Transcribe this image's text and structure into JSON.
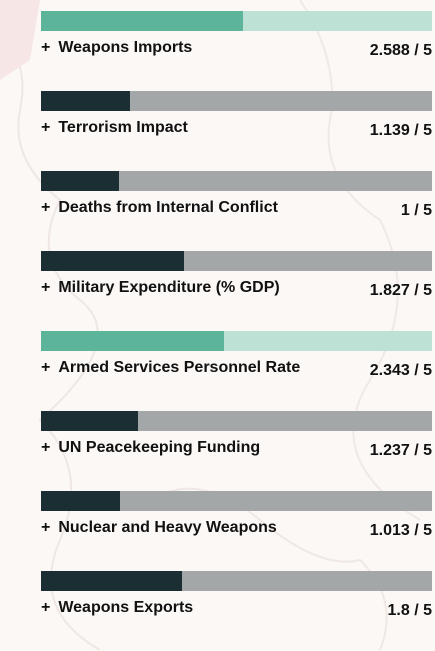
{
  "colors": {
    "dark_fill": "#1a2e33",
    "dark_track": "#a3a7a7",
    "teal_fill": "#5cb59a",
    "teal_track": "#bde1d4"
  },
  "expand_icon": "plus-icon",
  "indicators": [
    {
      "label": "Weapons Imports",
      "score_text": "2.588 / 5",
      "value": 2.588,
      "max": 5,
      "theme": "teal"
    },
    {
      "label": "Terrorism Impact",
      "score_text": "1.139 / 5",
      "value": 1.139,
      "max": 5,
      "theme": "dark"
    },
    {
      "label": "Deaths from Internal Conflict",
      "score_text": "1 / 5",
      "value": 1,
      "max": 5,
      "theme": "dark"
    },
    {
      "label": "Military Expenditure (% GDP)",
      "score_text": "1.827 / 5",
      "value": 1.827,
      "max": 5,
      "theme": "dark"
    },
    {
      "label": "Armed Services Personnel Rate",
      "score_text": "2.343 / 5",
      "value": 2.343,
      "max": 5,
      "theme": "teal"
    },
    {
      "label": "UN Peacekeeping Funding",
      "score_text": "1.237 / 5",
      "value": 1.237,
      "max": 5,
      "theme": "dark"
    },
    {
      "label": "Nuclear and Heavy Weapons",
      "score_text": "1.013 / 5",
      "value": 1.013,
      "max": 5,
      "theme": "dark"
    },
    {
      "label": "Weapons Exports",
      "score_text": "1.8 / 5",
      "value": 1.8,
      "max": 5,
      "theme": "dark"
    }
  ]
}
